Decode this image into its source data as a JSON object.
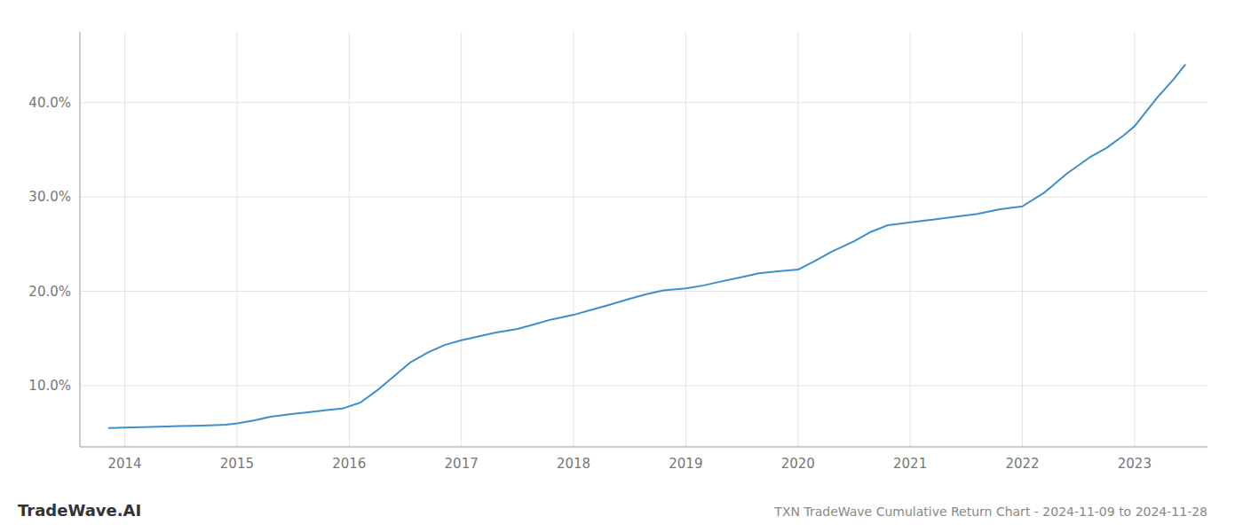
{
  "chart_data": {
    "type": "line",
    "title": "TXN TradeWave Cumulative Return Chart - 2024-11-09 to 2024-11-28",
    "annotations": [
      "TradeWave.AI"
    ],
    "x": [
      2013.86,
      2014.0,
      2014.15,
      2014.3,
      2014.5,
      2014.7,
      2014.9,
      2015.0,
      2015.15,
      2015.3,
      2015.5,
      2015.65,
      2015.8,
      2015.95,
      2016.1,
      2016.25,
      2016.4,
      2016.55,
      2016.7,
      2016.85,
      2017.0,
      2017.15,
      2017.3,
      2017.5,
      2017.65,
      2017.8,
      2018.0,
      2018.15,
      2018.3,
      2018.5,
      2018.65,
      2018.8,
      2019.0,
      2019.15,
      2019.3,
      2019.5,
      2019.65,
      2019.8,
      2020.0,
      2020.15,
      2020.3,
      2020.5,
      2020.65,
      2020.8,
      2021.0,
      2021.2,
      2021.4,
      2021.6,
      2021.8,
      2022.0,
      2022.2,
      2022.4,
      2022.6,
      2022.75,
      2022.9,
      2023.0,
      2023.1,
      2023.2,
      2023.35,
      2023.45
    ],
    "values": [
      5.5,
      5.55,
      5.6,
      5.65,
      5.7,
      5.75,
      5.85,
      6.0,
      6.3,
      6.7,
      7.0,
      7.2,
      7.4,
      7.6,
      8.2,
      9.5,
      11.0,
      12.5,
      13.5,
      14.3,
      14.8,
      15.2,
      15.6,
      16.0,
      16.5,
      17.0,
      17.5,
      18.0,
      18.5,
      19.2,
      19.7,
      20.1,
      20.3,
      20.6,
      21.0,
      21.5,
      21.9,
      22.1,
      22.3,
      23.2,
      24.2,
      25.3,
      26.3,
      27.0,
      27.3,
      27.6,
      27.9,
      28.2,
      28.7,
      29.0,
      30.5,
      32.5,
      34.2,
      35.2,
      36.5,
      37.5,
      39.0,
      40.5,
      42.5,
      44.0
    ],
    "color": "#3d8fc9",
    "xlim": [
      2013.6,
      2023.65
    ],
    "ylim": [
      3.5,
      47.5
    ],
    "xticks": [
      2014,
      2015,
      2016,
      2017,
      2018,
      2019,
      2020,
      2021,
      2022,
      2023
    ],
    "yticks": [
      {
        "value": 10.0,
        "label": "10.0%"
      },
      {
        "value": 20.0,
        "label": "20.0%"
      },
      {
        "value": 30.0,
        "label": "30.0%"
      },
      {
        "value": 40.0,
        "label": "40.0%"
      }
    ],
    "grid": true
  }
}
